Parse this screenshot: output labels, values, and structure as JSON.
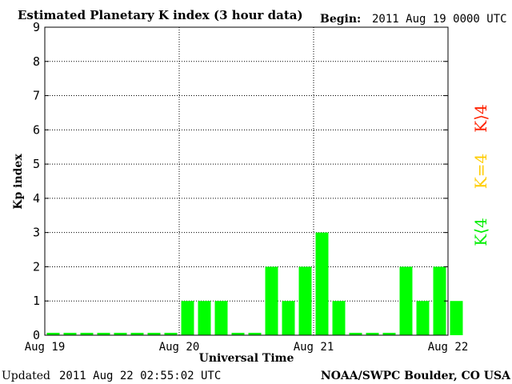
{
  "header": {
    "title": "Estimated Planetary K index (3 hour data)",
    "begin_label": "Begin:",
    "begin_value": "2011 Aug 19 0000 UTC"
  },
  "footer": {
    "updated_label": "Updated",
    "updated_value": "2011 Aug 22 02:55:02 UTC",
    "source": "NOAA/SWPC Boulder, CO USA"
  },
  "legend": [
    {
      "text": "K⟨4",
      "color": "#00ee00"
    },
    {
      "text": "K=4",
      "color": "#ffcc00"
    },
    {
      "text": "K⟩4",
      "color": "#ff2200"
    }
  ],
  "colors": {
    "bar": "#00ff00",
    "axis": "#000000",
    "grid": "#000000"
  },
  "chart_data": {
    "type": "bar",
    "title": "Estimated Planetary K index (3 hour data)",
    "xlabel": "Universal Time",
    "ylabel": "Kp index",
    "ylim": [
      0,
      9
    ],
    "yticks": [
      0,
      1,
      2,
      3,
      4,
      5,
      6,
      7,
      8,
      9
    ],
    "x_tick_labels": [
      "Aug 19",
      "Aug 20",
      "Aug 21",
      "Aug 22"
    ],
    "grid": true,
    "legend_placement": "right",
    "values": [
      0,
      0,
      0,
      0,
      0,
      0,
      0,
      0,
      1,
      1,
      1,
      0,
      0,
      2,
      1,
      2,
      3,
      1,
      0,
      0,
      0,
      2,
      1,
      2,
      1
    ]
  }
}
